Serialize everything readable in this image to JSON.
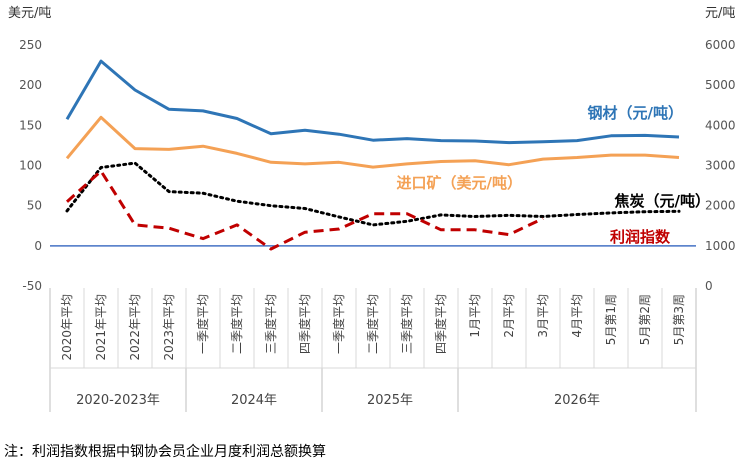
{
  "chart_data": {
    "type": "line",
    "left_unit": "美元/吨",
    "right_unit": "元/吨",
    "y_left": {
      "min": -50,
      "max": 250,
      "ticks": [
        -50,
        0,
        50,
        100,
        150,
        200,
        250
      ]
    },
    "y_right": {
      "min": 0,
      "max": 6000,
      "ticks": [
        0,
        1000,
        2000,
        3000,
        4000,
        5000,
        6000
      ]
    },
    "categories": [
      "2020年平均",
      "2021年平均",
      "2022年平均",
      "2023年平均",
      "一季度平均",
      "二季度平均",
      "三季度平均",
      "四季度平均",
      "一季度平均",
      "二季度平均",
      "三季度平均",
      "四季度平均",
      "1月平均",
      "2月平均",
      "3月平均",
      "4月平均",
      "5月第1周",
      "5月第2周",
      "5月第3周"
    ],
    "groups": [
      {
        "label": "2020-2023年",
        "start": 0,
        "end": 3
      },
      {
        "label": "2024年",
        "start": 4,
        "end": 7
      },
      {
        "label": "2025年",
        "start": 8,
        "end": 11
      },
      {
        "label": "2026年",
        "start": 12,
        "end": 18
      }
    ],
    "series": [
      {
        "name": "钢材（元/吨）",
        "axis": "right",
        "color": "#2e75b6",
        "style": "solid",
        "values": [
          4150,
          5600,
          4880,
          4400,
          4360,
          4170,
          3790,
          3880,
          3780,
          3630,
          3670,
          3620,
          3610,
          3570,
          3590,
          3620,
          3740,
          3750,
          3710
        ]
      },
      {
        "name": "进口矿（美元/吨）",
        "axis": "left",
        "color": "#f4a155",
        "style": "solid",
        "values": [
          109,
          160,
          121,
          120,
          124,
          115,
          104,
          102,
          104,
          98,
          102,
          105,
          106,
          101,
          108,
          110,
          113,
          113,
          110
        ]
      },
      {
        "name": "焦炭（元/吨）",
        "axis": "right",
        "color": "#000000",
        "style": "dotted",
        "values": [
          1870,
          2950,
          3060,
          2350,
          2310,
          2110,
          2000,
          1930,
          1720,
          1520,
          1610,
          1770,
          1730,
          1760,
          1730,
          1780,
          1820,
          1850,
          1860
        ]
      },
      {
        "name": "利润指数",
        "axis": "left",
        "color": "#c00000",
        "style": "dashed",
        "values": [
          55,
          93,
          26,
          22,
          9,
          26,
          -4,
          17,
          21,
          40,
          40,
          20,
          20,
          14,
          34,
          null,
          null,
          null,
          null
        ]
      }
    ],
    "label_positions": [
      "upper-right",
      "middle-right",
      "right",
      "lower-right"
    ],
    "grid": false
  },
  "footnote": "注：利润指数根据中钢协会员企业月度利润总额换算"
}
